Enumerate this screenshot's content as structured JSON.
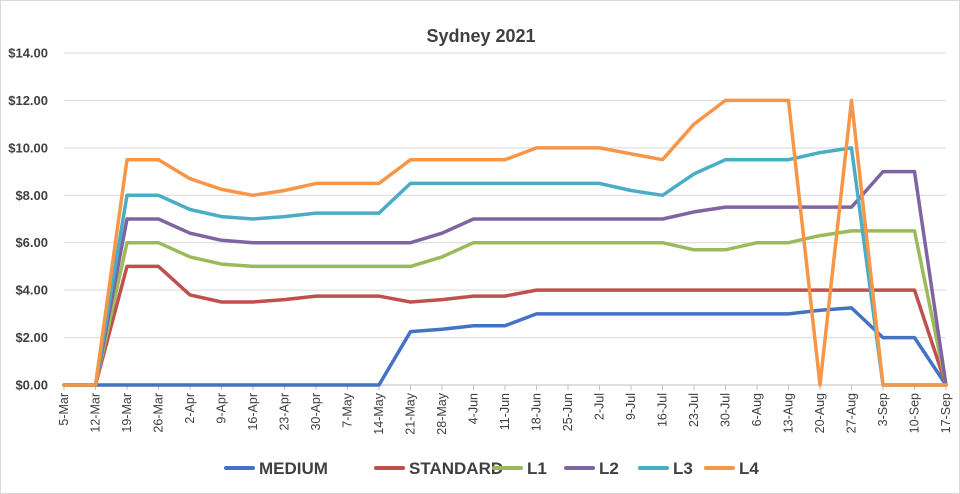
{
  "chart_data": {
    "type": "line",
    "title": "Sydney 2021",
    "xlabel": "",
    "ylabel": "",
    "ylim": [
      0,
      14
    ],
    "y_ticks": [
      "$0.00",
      "$2.00",
      "$4.00",
      "$6.00",
      "$8.00",
      "$10.00",
      "$12.00",
      "$14.00"
    ],
    "y_tick_values": [
      0,
      2,
      4,
      6,
      8,
      10,
      12,
      14
    ],
    "grid": true,
    "legend_position": "bottom",
    "x": [
      "5-Mar",
      "12-Mar",
      "19-Mar",
      "26-Mar",
      "2-Apr",
      "9-Apr",
      "16-Apr",
      "23-Apr",
      "30-Apr",
      "7-May",
      "14-May",
      "21-May",
      "28-May",
      "4-Jun",
      "11-Jun",
      "18-Jun",
      "25-Jun",
      "2-Jul",
      "9-Jul",
      "16-Jul",
      "23-Jul",
      "30-Jul",
      "6-Aug",
      "13-Aug",
      "20-Aug",
      "27-Aug",
      "3-Sep",
      "10-Sep",
      "17-Sep"
    ],
    "series": [
      {
        "name": "MEDIUM",
        "color": "#4472C4",
        "values": [
          0,
          0,
          0,
          0,
          0,
          0,
          0,
          0,
          0,
          0,
          0,
          2.25,
          2.35,
          2.5,
          2.5,
          3,
          3,
          3,
          3,
          3,
          3,
          3,
          3,
          3,
          3.15,
          3.25,
          2,
          2,
          0
        ]
      },
      {
        "name": "STANDARD",
        "color": "#C0504D",
        "values": [
          0,
          0,
          5,
          5,
          3.8,
          3.5,
          3.5,
          3.6,
          3.75,
          3.75,
          3.75,
          3.5,
          3.6,
          3.75,
          3.75,
          4,
          4,
          4,
          4,
          4,
          4,
          4,
          4,
          4,
          4,
          4,
          4,
          4,
          0
        ]
      },
      {
        "name": "L1",
        "color": "#9BBB59",
        "values": [
          0,
          0,
          6,
          6,
          5.4,
          5.1,
          5,
          5,
          5,
          5,
          5,
          5,
          5.4,
          6,
          6,
          6,
          6,
          6,
          6,
          6,
          5.7,
          5.7,
          6,
          6,
          6.3,
          6.5,
          6.5,
          6.5,
          0
        ]
      },
      {
        "name": "L2",
        "color": "#8064A2",
        "values": [
          0,
          0,
          7,
          7,
          6.4,
          6.1,
          6,
          6,
          6,
          6,
          6,
          6,
          6.4,
          7,
          7,
          7,
          7,
          7,
          7,
          7,
          7.3,
          7.5,
          7.5,
          7.5,
          7.5,
          7.5,
          9,
          9,
          0
        ]
      },
      {
        "name": "L3",
        "color": "#4BACC6",
        "values": [
          0,
          0,
          8,
          8,
          7.4,
          7.1,
          7,
          7.1,
          7.25,
          7.25,
          7.25,
          8.5,
          8.5,
          8.5,
          8.5,
          8.5,
          8.5,
          8.5,
          8.2,
          8,
          8.9,
          9.5,
          9.5,
          9.5,
          9.8,
          10,
          0,
          0,
          0
        ]
      },
      {
        "name": "L4",
        "color": "#F79646",
        "values": [
          0,
          0,
          9.5,
          9.5,
          8.7,
          8.25,
          8,
          8.2,
          8.5,
          8.5,
          8.5,
          9.5,
          9.5,
          9.5,
          9.5,
          10,
          10,
          10,
          9.75,
          9.5,
          11,
          12,
          12,
          12,
          0,
          12,
          0,
          0,
          0
        ]
      }
    ]
  }
}
